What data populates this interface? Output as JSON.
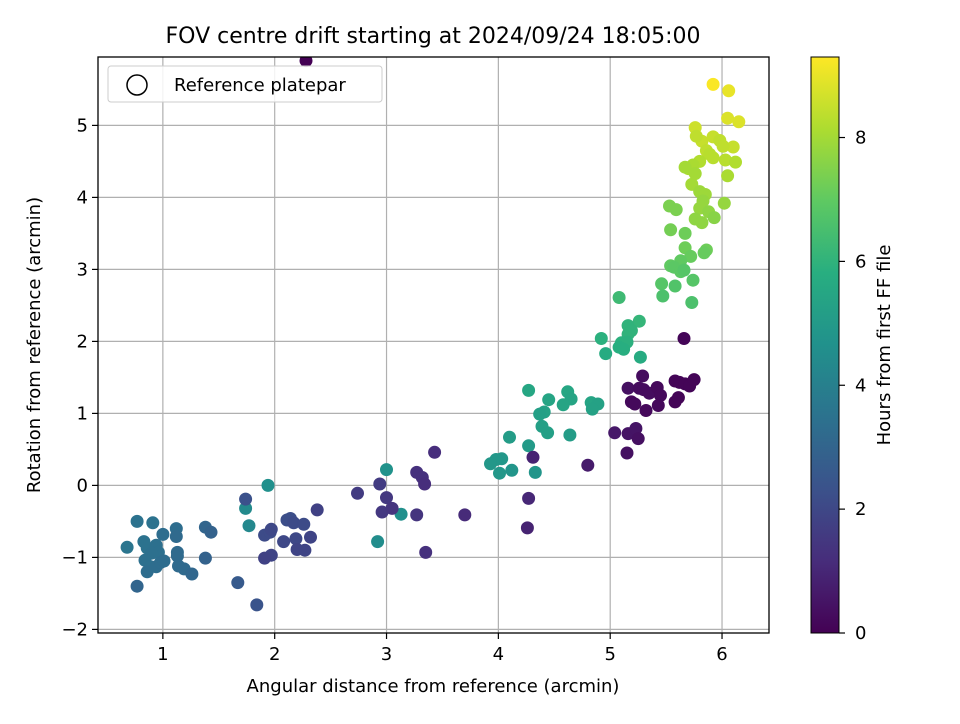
{
  "chart_data": {
    "type": "scatter",
    "title": "FOV centre drift starting at 2024/09/24 18:05:00",
    "xlabel": "Angular distance from reference (arcmin)",
    "ylabel": "Rotation from reference (arcmin)",
    "xlim": [
      0.42,
      6.42
    ],
    "ylim": [
      -2.05,
      5.95
    ],
    "xticks": [
      "1",
      "2",
      "3",
      "4",
      "5",
      "6"
    ],
    "yticks": [
      "−2",
      "−1",
      "0",
      "1",
      "2",
      "3",
      "4",
      "5"
    ],
    "grid": true,
    "legend": {
      "placement": "upper-left",
      "entries": [
        "Reference platepar"
      ]
    },
    "colorbar": {
      "label": "Hours from first FF file",
      "colormap": "viridis",
      "range": [
        0,
        9.3
      ],
      "ticks": [
        "0",
        "2",
        "4",
        "6",
        "8"
      ]
    },
    "points": [
      [
        5.92,
        5.57,
        9.25
      ],
      [
        6.06,
        5.48,
        9.0
      ],
      [
        6.05,
        5.1,
        8.8
      ],
      [
        6.15,
        5.05,
        8.8
      ],
      [
        5.76,
        4.97,
        8.6
      ],
      [
        6.1,
        4.7,
        8.5
      ],
      [
        5.82,
        4.78,
        8.5
      ],
      [
        5.92,
        4.84,
        8.5
      ],
      [
        5.98,
        4.79,
        8.4
      ],
      [
        6.01,
        4.71,
        8.4
      ],
      [
        5.86,
        4.65,
        8.4
      ],
      [
        5.89,
        4.6,
        8.3
      ],
      [
        5.77,
        4.85,
        8.4
      ],
      [
        5.92,
        4.55,
        8.3
      ],
      [
        6.03,
        4.52,
        8.3
      ],
      [
        6.12,
        4.49,
        8.2
      ],
      [
        5.8,
        4.5,
        8.2
      ],
      [
        5.74,
        4.45,
        8.1
      ],
      [
        5.7,
        4.4,
        8.1
      ],
      [
        5.67,
        4.42,
        8.0
      ],
      [
        6.05,
        4.3,
        8.1
      ],
      [
        5.76,
        4.33,
        8.0
      ],
      [
        5.73,
        4.18,
        8.0
      ],
      [
        5.8,
        4.08,
        7.9
      ],
      [
        5.85,
        4.04,
        7.9
      ],
      [
        5.83,
        3.95,
        7.8
      ],
      [
        5.8,
        3.85,
        7.8
      ],
      [
        6.02,
        3.92,
        7.8
      ],
      [
        5.88,
        3.8,
        7.7
      ],
      [
        5.76,
        3.7,
        7.7
      ],
      [
        5.82,
        3.65,
        7.7
      ],
      [
        5.93,
        3.72,
        7.6
      ],
      [
        5.53,
        3.88,
        7.4
      ],
      [
        5.59,
        3.83,
        7.4
      ],
      [
        5.54,
        3.55,
        7.3
      ],
      [
        5.67,
        3.5,
        7.2
      ],
      [
        5.86,
        3.27,
        7.2
      ],
      [
        5.84,
        3.23,
        7.1
      ],
      [
        5.67,
        3.3,
        7.2
      ],
      [
        5.72,
        3.18,
        7.1
      ],
      [
        5.63,
        3.12,
        7.0
      ],
      [
        5.54,
        3.05,
        7.0
      ],
      [
        5.57,
        3.03,
        6.9
      ],
      [
        5.63,
        2.97,
        6.9
      ],
      [
        5.66,
        2.99,
        6.8
      ],
      [
        5.74,
        2.85,
        6.8
      ],
      [
        5.46,
        2.8,
        6.8
      ],
      [
        5.58,
        2.77,
        6.7
      ],
      [
        5.47,
        2.63,
        6.6
      ],
      [
        5.73,
        2.54,
        6.6
      ],
      [
        5.08,
        2.61,
        6.3
      ],
      [
        5.26,
        2.28,
        6.1
      ],
      [
        5.16,
        2.22,
        6.0
      ],
      [
        5.19,
        2.15,
        6.0
      ],
      [
        5.16,
        2.1,
        6.0
      ],
      [
        5.1,
        1.98,
        5.9
      ],
      [
        4.92,
        2.04,
        5.9
      ],
      [
        5.15,
        1.99,
        5.9
      ],
      [
        5.08,
        1.92,
        5.8
      ],
      [
        5.12,
        1.89,
        5.8
      ],
      [
        4.96,
        1.83,
        5.7
      ],
      [
        5.27,
        1.78,
        5.7
      ],
      [
        4.27,
        1.32,
        5.5
      ],
      [
        4.62,
        1.3,
        5.5
      ],
      [
        4.45,
        1.19,
        5.4
      ],
      [
        4.65,
        1.2,
        5.4
      ],
      [
        4.58,
        1.12,
        5.4
      ],
      [
        4.83,
        1.15,
        5.4
      ],
      [
        4.89,
        1.13,
        5.3
      ],
      [
        4.84,
        1.06,
        5.3
      ],
      [
        4.41,
        1.02,
        5.3
      ],
      [
        4.37,
        0.99,
        5.2
      ],
      [
        4.39,
        0.82,
        5.2
      ],
      [
        4.44,
        0.73,
        5.2
      ],
      [
        4.64,
        0.7,
        5.1
      ],
      [
        4.1,
        0.67,
        5.1
      ],
      [
        4.27,
        0.55,
        5.0
      ],
      [
        4.03,
        0.37,
        4.9
      ],
      [
        3.98,
        0.36,
        4.9
      ],
      [
        3.93,
        0.3,
        4.9
      ],
      [
        4.01,
        0.17,
        4.9
      ],
      [
        4.12,
        0.21,
        4.8
      ],
      [
        4.33,
        0.18,
        4.8
      ],
      [
        3.13,
        -0.4,
        4.6
      ],
      [
        2.92,
        -0.78,
        4.5
      ],
      [
        1.94,
        0.0,
        4.6
      ],
      [
        1.74,
        -0.32,
        4.4
      ],
      [
        1.77,
        -0.56,
        4.3
      ],
      [
        2.28,
        5.9,
        0.0
      ],
      [
        0.68,
        -0.86,
        3.6
      ],
      [
        0.77,
        -0.5,
        3.5
      ],
      [
        0.83,
        -0.78,
        3.5
      ],
      [
        0.86,
        -0.87,
        3.5
      ],
      [
        0.91,
        -0.52,
        3.5
      ],
      [
        0.94,
        -0.83,
        3.4
      ],
      [
        0.96,
        -0.93,
        3.4
      ],
      [
        0.9,
        -0.94,
        3.4
      ],
      [
        0.84,
        -1.04,
        3.4
      ],
      [
        0.89,
        -1.13,
        3.4
      ],
      [
        0.86,
        -1.2,
        3.3
      ],
      [
        0.94,
        -1.13,
        3.3
      ],
      [
        0.98,
        -1.07,
        3.3
      ],
      [
        1.01,
        -1.05,
        3.3
      ],
      [
        1.0,
        -0.68,
        3.3
      ],
      [
        1.12,
        -0.6,
        3.3
      ],
      [
        1.12,
        -0.71,
        3.2
      ],
      [
        1.13,
        -0.93,
        3.2
      ],
      [
        1.13,
        -0.98,
        3.2
      ],
      [
        1.14,
        -1.12,
        3.2
      ],
      [
        1.19,
        -1.16,
        3.2
      ],
      [
        1.26,
        -1.23,
        3.1
      ],
      [
        0.77,
        -1.4,
        3.0
      ],
      [
        1.38,
        -0.58,
        3.0
      ],
      [
        1.43,
        -0.65,
        2.9
      ],
      [
        1.38,
        -1.01,
        2.9
      ],
      [
        1.67,
        -1.35,
        2.6
      ],
      [
        1.84,
        -1.66,
        2.4
      ],
      [
        1.74,
        -0.19,
        2.3
      ],
      [
        2.14,
        -0.46,
        2.2
      ],
      [
        2.11,
        -0.48,
        2.2
      ],
      [
        2.17,
        -0.52,
        2.1
      ],
      [
        2.26,
        -0.54,
        2.1
      ],
      [
        1.91,
        -0.69,
        2.1
      ],
      [
        1.96,
        -0.65,
        2.1
      ],
      [
        1.97,
        -0.61,
        2.0
      ],
      [
        2.19,
        -0.74,
        2.0
      ],
      [
        2.08,
        -0.78,
        2.0
      ],
      [
        2.32,
        -0.72,
        1.9
      ],
      [
        2.2,
        -0.89,
        1.9
      ],
      [
        2.27,
        -0.9,
        1.9
      ],
      [
        1.97,
        -0.97,
        1.9
      ],
      [
        1.91,
        -1.01,
        1.8
      ],
      [
        2.38,
        -0.34,
        1.8
      ],
      [
        2.74,
        -0.11,
        1.6
      ],
      [
        2.94,
        0.02,
        1.6
      ],
      [
        3.0,
        0.22,
        4.7
      ],
      [
        3.0,
        -0.17,
        1.5
      ],
      [
        2.96,
        -0.37,
        1.5
      ],
      [
        3.05,
        -0.32,
        1.4
      ],
      [
        3.27,
        -0.41,
        1.4
      ],
      [
        3.35,
        -0.93,
        1.3
      ],
      [
        3.27,
        0.18,
        1.3
      ],
      [
        3.32,
        0.11,
        1.3
      ],
      [
        3.34,
        0.02,
        1.2
      ],
      [
        3.43,
        0.46,
        1.2
      ],
      [
        3.7,
        -0.41,
        1.1
      ],
      [
        4.27,
        -0.18,
        1.0
      ],
      [
        4.26,
        -0.59,
        0.9
      ],
      [
        4.31,
        0.39,
        0.9
      ],
      [
        4.8,
        0.28,
        0.7
      ],
      [
        5.04,
        0.73,
        0.6
      ],
      [
        5.16,
        0.72,
        0.5
      ],
      [
        5.23,
        0.79,
        0.5
      ],
      [
        5.25,
        0.65,
        0.4
      ],
      [
        5.15,
        0.45,
        0.4
      ],
      [
        5.16,
        1.35,
        0.4
      ],
      [
        5.26,
        1.35,
        0.3
      ],
      [
        5.29,
        1.52,
        0.3
      ],
      [
        5.3,
        1.33,
        0.3
      ],
      [
        5.35,
        1.28,
        0.3
      ],
      [
        5.19,
        1.16,
        0.2
      ],
      [
        5.22,
        1.13,
        0.2
      ],
      [
        5.42,
        1.36,
        0.2
      ],
      [
        5.45,
        1.25,
        0.2
      ],
      [
        5.43,
        1.11,
        0.2
      ],
      [
        5.32,
        1.04,
        0.2
      ],
      [
        5.58,
        1.45,
        0.1
      ],
      [
        5.62,
        1.43,
        0.1
      ],
      [
        5.67,
        1.41,
        0.1
      ],
      [
        5.71,
        1.38,
        0.1
      ],
      [
        5.75,
        1.47,
        0.1
      ],
      [
        5.58,
        1.16,
        0.1
      ],
      [
        5.61,
        1.22,
        0.1
      ],
      [
        5.66,
        2.04,
        0.1
      ]
    ]
  }
}
